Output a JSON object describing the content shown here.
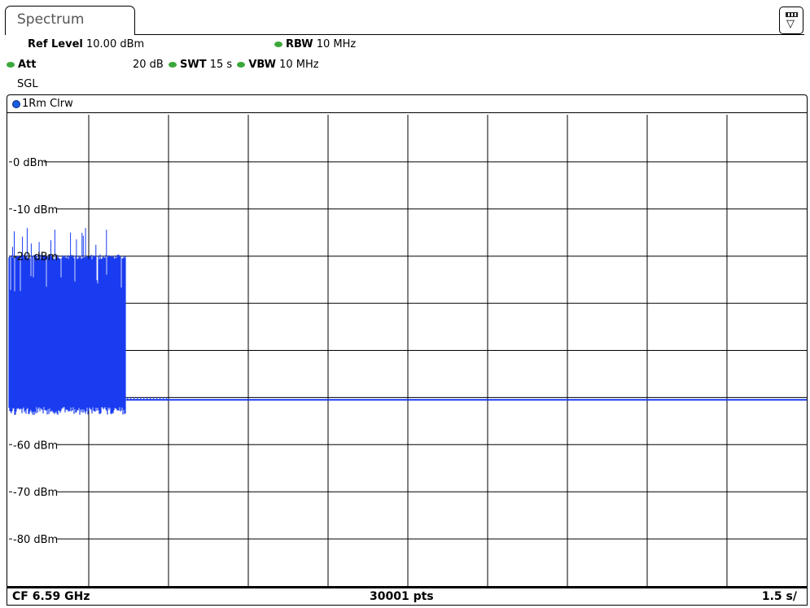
{
  "tab": {
    "label": "Spectrum"
  },
  "settings": {
    "ref_level_label": "Ref Level",
    "ref_level_value": "10.00 dBm",
    "att_label": "Att",
    "att_value": "20 dB",
    "swt_label": "SWT",
    "swt_value": "15 s",
    "rbw_label": "RBW",
    "rbw_value": "10 MHz",
    "vbw_label": "VBW",
    "vbw_value": "10 MHz",
    "mode": "SGL",
    "led_color": "#3ca83c"
  },
  "trace": {
    "label": "1Rm Clrw",
    "color": "#1a3cf0"
  },
  "footer": {
    "center_freq": "CF 6.59 GHz",
    "points": "30001 pts",
    "time_per_div": "1.5 s/"
  },
  "chart_data": {
    "type": "line",
    "title": "",
    "xlabel": "",
    "ylabel": "",
    "y_tick_labels": [
      "0 dBm",
      "-10 dBm",
      "-20 dBm",
      "-60 dBm",
      "-70 dBm",
      "-80 dBm"
    ],
    "y_tick_values": [
      0,
      -10,
      -20,
      -60,
      -70,
      -80
    ],
    "ylim": [
      -90,
      10
    ],
    "x_divisions": 10,
    "x_time_per_div_s": 1.5,
    "xlim_s": [
      0,
      15
    ],
    "grid": true,
    "series": [
      {
        "description_burst_region_s": [
          0,
          2.2
        ],
        "burst_peak_dBm": -20,
        "burst_spike_max_dBm": -14,
        "burst_floor_dBm": -52,
        "noise_floor_dBm": -50.5
      }
    ]
  }
}
